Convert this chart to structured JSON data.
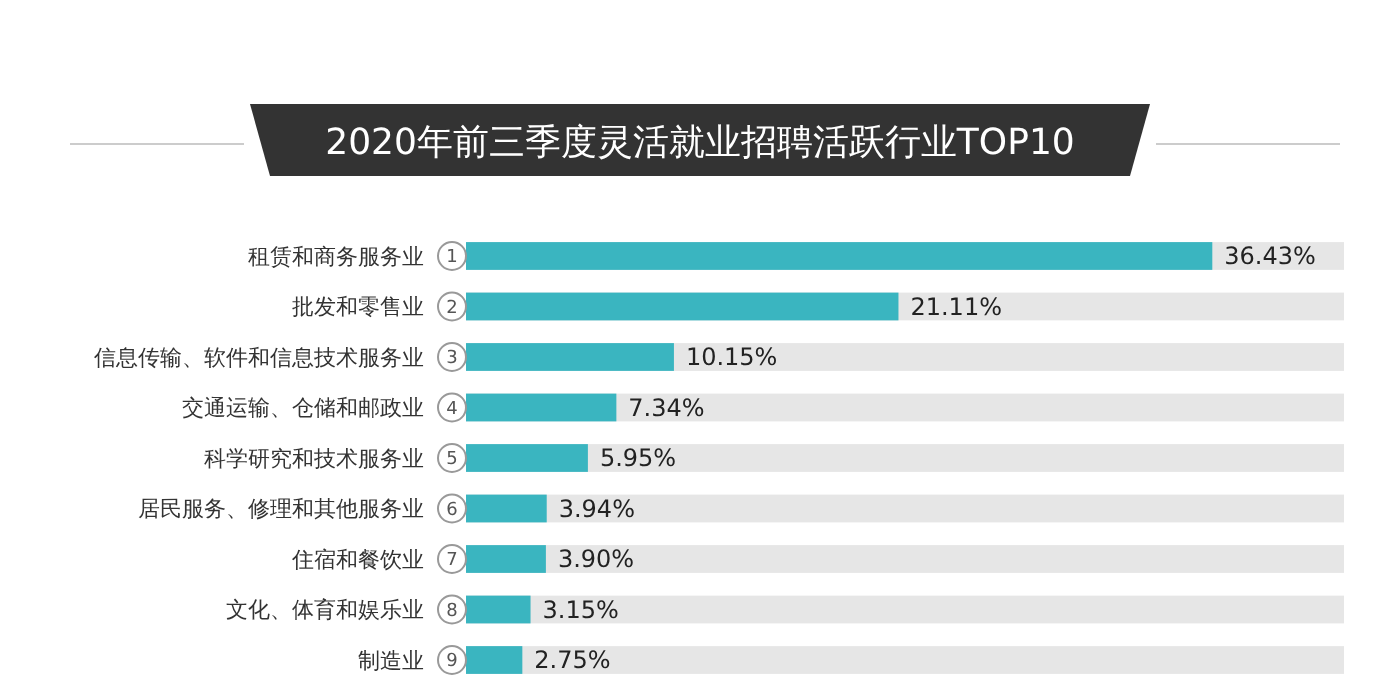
{
  "chart_data": {
    "type": "bar",
    "orientation": "horizontal",
    "title": "2020年前三季度灵活就业招聘活跃行业TOP10",
    "categories": [
      "租赁和商务服务业",
      "批发和零售业",
      "信息传输、软件和信息技术服务业",
      "交通运输、仓储和邮政业",
      "科学研究和技术服务业",
      "居民服务、修理和其他服务业",
      "住宿和餐饮业",
      "文化、体育和娱乐业",
      "制造业"
    ],
    "values": [
      36.43,
      21.11,
      10.15,
      7.34,
      5.95,
      3.94,
      3.9,
      3.15,
      2.75
    ],
    "value_labels": [
      "36.43%",
      "21.11%",
      "10.15%",
      "7.34%",
      "5.95%",
      "3.94%",
      "3.90%",
      "3.15%",
      "2.75%"
    ],
    "color": "#3ab5c0",
    "annotations": [
      {
        "text": "1",
        "y": "租赁和商务服务业"
      },
      {
        "text": "2",
        "y": "批发和零售业"
      },
      {
        "text": "3",
        "y": "信息传输、软件和信息技术服务业"
      },
      {
        "text": "4",
        "y": "交通运输、仓储和邮政业"
      },
      {
        "text": "5",
        "y": "科学研究和技术服务业"
      },
      {
        "text": "6",
        "y": "居民服务、修理和其他服务业"
      },
      {
        "text": "7",
        "y": "住宿和餐饮业"
      },
      {
        "text": "8",
        "y": "文化、体育和娱乐业"
      },
      {
        "text": "9",
        "y": "制造业"
      }
    ]
  }
}
